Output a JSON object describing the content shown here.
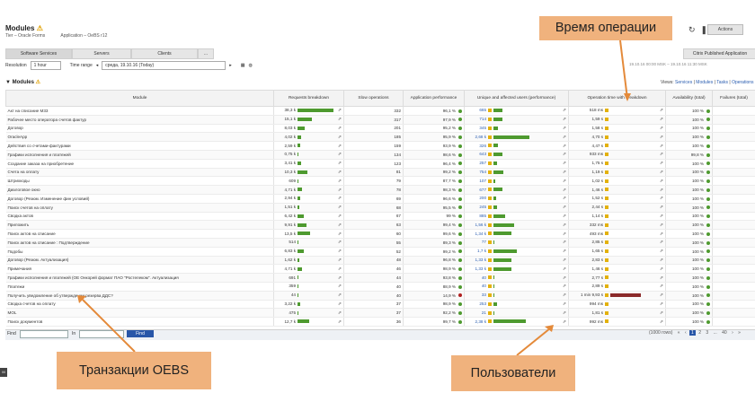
{
  "header": {
    "title": "Modules",
    "tier": "Tier – Oracle Forms",
    "application": "Application – OeBS r12",
    "actions_label": "Actions"
  },
  "tabs": [
    "Software Services",
    "Servers",
    "Clients",
    "..."
  ],
  "tab_right": "Citrix Published Application",
  "filters": {
    "resolution_label": "Resolution",
    "resolution_value": "1 hour",
    "timerange_label": "Time range",
    "timerange_value": "среда, 19.10.16 (Today)",
    "range_text": "19.10.16 00:00 MSK – 19.10.16 11:30 MSK"
  },
  "toolbar": {
    "title": "Modules",
    "views_label": "Views:",
    "views": [
      "Services",
      "Modules",
      "Tasks",
      "Operations"
    ]
  },
  "columns": [
    "Module",
    "Requests breakdown",
    "Slow operations",
    "Application performance",
    "Unique and affected users (performance)",
    "Operation time with breakdown",
    "Availability (total)",
    "Failures (total)"
  ],
  "rows": [
    {
      "module": "Акт на списание М33",
      "req": "38,3 k",
      "slow": "332",
      "perf": "96,1 %",
      "users": "665",
      "time": "518 ms",
      "avail": "100 %",
      "rbar": 1.0,
      "ubar": 0.12,
      "perf_status": "good"
    },
    {
      "module": "Рабочее место оператора счетов фактур",
      "req": "15,1 k",
      "slow": "317",
      "perf": "97,9 %",
      "users": "714",
      "time": "1,59 s",
      "avail": "100 %",
      "rbar": 0.4,
      "ubar": 0.13,
      "perf_status": "good"
    },
    {
      "module": "Договор",
      "req": "8,03 k",
      "slow": "201",
      "perf": "95,2 %",
      "users": "345",
      "time": "1,58 s",
      "avail": "100 %",
      "rbar": 0.21,
      "ubar": 0.06,
      "perf_status": "good"
    },
    {
      "module": "OracleApp",
      "req": "4,02 k",
      "slow": "185",
      "perf": "95,9 %",
      "users": "2,68 k",
      "time": "4,70 s",
      "avail": "100 %",
      "rbar": 0.1,
      "ubar": 0.5,
      "perf_status": "good"
    },
    {
      "module": "Действия со счетами-фактурами",
      "req": "2,59 k",
      "slow": "159",
      "perf": "93,9 %",
      "users": "326",
      "time": "4,47 s",
      "avail": "100 %",
      "rbar": 0.07,
      "ubar": 0.06,
      "perf_status": "good"
    },
    {
      "module": "Графики исполнения и платежей",
      "req": "0,75 k",
      "slow": "134",
      "perf": "98,6 %",
      "users": "643",
      "time": "933 ms",
      "avail": "99,8 %",
      "rbar": 0.02,
      "ubar": 0.12,
      "perf_status": "good"
    },
    {
      "module": "Создание заказа на приобретение",
      "req": "3,41 k",
      "slow": "123",
      "perf": "96,4 %",
      "users": "257",
      "time": "1,75 s",
      "avail": "100 %",
      "rbar": 0.09,
      "ubar": 0.05,
      "perf_status": "good"
    },
    {
      "module": "Счета на оплату",
      "req": "10,3 k",
      "slow": "81",
      "perf": "99,2 %",
      "users": "754",
      "time": "1,19 s",
      "avail": "100 %",
      "rbar": 0.27,
      "ubar": 0.14,
      "perf_status": "good"
    },
    {
      "module": "Штрихкоды",
      "req": "609",
      "slow": "79",
      "perf": "87,7 %",
      "users": "107",
      "time": "1,02 s",
      "avail": "100 %",
      "rbar": 0.02,
      "ubar": 0.02,
      "perf_status": "good"
    },
    {
      "module": "Диалоговое окно",
      "req": "4,71 k",
      "slow": "78",
      "perf": "98,3 %",
      "users": "677",
      "time": "1,46 s",
      "avail": "100 %",
      "rbar": 0.12,
      "ubar": 0.12,
      "perf_status": "good"
    },
    {
      "module": "Договор (Резюм. Изменение фин условий)",
      "req": "2,94 k",
      "slow": "69",
      "perf": "96,6 %",
      "users": "200",
      "time": "1,52 s",
      "avail": "100 %",
      "rbar": 0.08,
      "ubar": 0.04,
      "perf_status": "good"
    },
    {
      "module": "Поиск счетов на оплату",
      "req": "1,51 k",
      "slow": "68",
      "perf": "95,5 %",
      "users": "245",
      "time": "2,44 s",
      "avail": "100 %",
      "rbar": 0.04,
      "ubar": 0.05,
      "perf_status": "good"
    },
    {
      "module": "Сводка актов",
      "req": "6,42 k",
      "slow": "67",
      "perf": "99 %",
      "users": "885",
      "time": "1,14 s",
      "avail": "100 %",
      "rbar": 0.17,
      "ubar": 0.16,
      "perf_status": "good"
    },
    {
      "module": "Приложить",
      "req": "9,91 k",
      "slow": "63",
      "perf": "99,4 %",
      "users": "1,56 k",
      "time": "332 ms",
      "avail": "100 %",
      "rbar": 0.26,
      "ubar": 0.29,
      "perf_status": "good"
    },
    {
      "module": "Поиск актов на списание",
      "req": "13,5 k",
      "slow": "60",
      "perf": "99,6 %",
      "users": "1,34 k",
      "time": "493 ms",
      "avail": "100 %",
      "rbar": 0.35,
      "ubar": 0.25,
      "perf_status": "good"
    },
    {
      "module": "Поиск актов на списание : Подтверждение",
      "req": "514",
      "slow": "55",
      "perf": "89,3 %",
      "users": "77",
      "time": "2,85 s",
      "avail": "100 %",
      "rbar": 0.01,
      "ubar": 0.015,
      "perf_status": "good"
    },
    {
      "module": "Подобы",
      "req": "6,83 k",
      "slow": "52",
      "perf": "99,2 %",
      "users": "1,7 k",
      "time": "1,65 s",
      "avail": "100 %",
      "rbar": 0.18,
      "ubar": 0.32,
      "perf_status": "good"
    },
    {
      "module": "Договор (Резюм. Актуализация)",
      "req": "1,62 k",
      "slow": "48",
      "perf": "96,8 %",
      "users": "1,33 k",
      "time": "2,83 s",
      "avail": "100 %",
      "rbar": 0.04,
      "ubar": 0.25,
      "perf_status": "good"
    },
    {
      "module": "Примечания",
      "req": "4,71 k",
      "slow": "46",
      "perf": "98,9 %",
      "users": "1,33 k",
      "time": "1,46 s",
      "avail": "100 %",
      "rbar": 0.12,
      "ubar": 0.25,
      "perf_status": "good"
    },
    {
      "module": "Графики исполнения и платежей (ОЕ Онкорей формат ПАО \"Ростелеком\". Актуализация",
      "req": "691",
      "slow": "44",
      "perf": "93,8 %",
      "users": "40",
      "time": "2,77 s",
      "avail": "100 %",
      "rbar": 0.02,
      "ubar": 0.01,
      "perf_status": "good"
    },
    {
      "module": "Платежи",
      "req": "359",
      "slow": "40",
      "perf": "88,9 %",
      "users": "40",
      "time": "2,89 s",
      "avail": "100 %",
      "rbar": 0.01,
      "ubar": 0.01,
      "perf_status": "good"
    },
    {
      "module": "Получить уведомление об утверждении резерва ДДС?",
      "req": "44",
      "slow": "40",
      "perf": "14,9 %",
      "users": "33",
      "time": "1 min 9,93 s",
      "avail": "100 %",
      "rbar": 0.002,
      "ubar": 0.006,
      "perf_status": "bad"
    },
    {
      "module": "Сводка счетов на оплату",
      "req": "3,22 k",
      "slow": "37",
      "perf": "98,9 %",
      "users": "253",
      "time": "994 ms",
      "avail": "100 %",
      "rbar": 0.08,
      "ubar": 0.05,
      "perf_status": "good"
    },
    {
      "module": "MOL",
      "req": "475",
      "slow": "37",
      "perf": "92,2 %",
      "users": "21",
      "time": "1,81 s",
      "avail": "100 %",
      "rbar": 0.01,
      "ubar": 0.004,
      "perf_status": "good"
    },
    {
      "module": "Поиск документов",
      "req": "12,7 k",
      "slow": "36",
      "perf": "99,7 %",
      "users": "2,38 k",
      "time": "992 ms",
      "avail": "100 %",
      "rbar": 0.33,
      "ubar": 0.45,
      "perf_status": "good"
    }
  ],
  "footer": {
    "find_label": "Find",
    "in_label": "In",
    "find_button": "Find",
    "pager": [
      "(1000 rows)",
      "«",
      "‹",
      "1",
      "2",
      "3",
      "...",
      "40",
      "›",
      "»"
    ]
  },
  "callouts": {
    "time": "Время операции",
    "oebs": "Транзакции OEBS",
    "users": "Пользователи"
  },
  "colors": {
    "bar_green": "#4e9a2f",
    "accent": "#2856a8",
    "callout": "#f0b27d",
    "bad": "#b02020",
    "warn": "#e3b10b"
  }
}
